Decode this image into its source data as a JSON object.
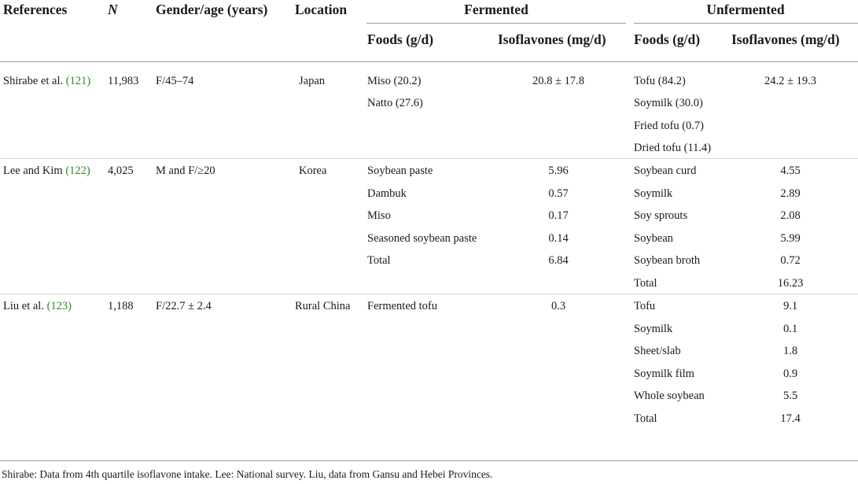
{
  "table": {
    "headers": {
      "references": "References",
      "n": "N",
      "gender_age": "Gender/age (years)",
      "location": "Location",
      "fermented": "Fermented",
      "unfermented": "Unfermented",
      "foods": "Foods (g/d)",
      "isoflavones": "Isoflavones (mg/d)"
    },
    "studies": [
      {
        "ref_name": "Shirabe et al.",
        "ref_cite": "(121)",
        "n": "11,983",
        "gender_age": "F/45–74",
        "location": "Japan",
        "fermented": [
          {
            "food": "Miso (20.2)",
            "iso": "20.8 ± 17.8"
          },
          {
            "food": "Natto (27.6)",
            "iso": ""
          }
        ],
        "unfermented": [
          {
            "food": "Tofu (84.2)",
            "iso": "24.2 ± 19.3"
          },
          {
            "food": "Soymilk (30.0)",
            "iso": ""
          },
          {
            "food": "Fried tofu (0.7)",
            "iso": ""
          },
          {
            "food": "Dried tofu (11.4)",
            "iso": ""
          }
        ]
      },
      {
        "ref_name": "Lee and Kim",
        "ref_cite": "(122)",
        "n": "4,025",
        "gender_age": "M and F/≥20",
        "location": "Korea",
        "fermented": [
          {
            "food": "Soybean paste",
            "iso": "5.96"
          },
          {
            "food": "Dambuk",
            "iso": "0.57"
          },
          {
            "food": "Miso",
            "iso": "0.17"
          },
          {
            "food": "Seasoned soybean paste",
            "iso": "0.14"
          },
          {
            "food": "Total",
            "iso": "6.84"
          }
        ],
        "unfermented": [
          {
            "food": "Soybean curd",
            "iso": "4.55"
          },
          {
            "food": "Soymilk",
            "iso": "2.89"
          },
          {
            "food": "Soy sprouts",
            "iso": "2.08"
          },
          {
            "food": "Soybean",
            "iso": "5.99"
          },
          {
            "food": "Soybean broth",
            "iso": "0.72"
          },
          {
            "food": "Total",
            "iso": "16.23"
          }
        ]
      },
      {
        "ref_name": "Liu et al.",
        "ref_cite": "(123)",
        "n": "1,188",
        "gender_age": "F/22.7 ± 2.4",
        "location": "Rural China",
        "fermented": [
          {
            "food": "Fermented tofu",
            "iso": "0.3"
          }
        ],
        "unfermented": [
          {
            "food": "Tofu",
            "iso": "9.1"
          },
          {
            "food": "Soymilk",
            "iso": "0.1"
          },
          {
            "food": "Sheet/slab",
            "iso": "1.8"
          },
          {
            "food": "Soymilk film",
            "iso": "0.9"
          },
          {
            "food": "Whole soybean",
            "iso": "5.5"
          },
          {
            "food": "Total",
            "iso": "17.4"
          }
        ]
      }
    ],
    "footnote": "Shirabe: Data from 4th quartile isoflavone intake. Lee: National survey. Liu, data from Gansu and Hebei Provinces."
  }
}
